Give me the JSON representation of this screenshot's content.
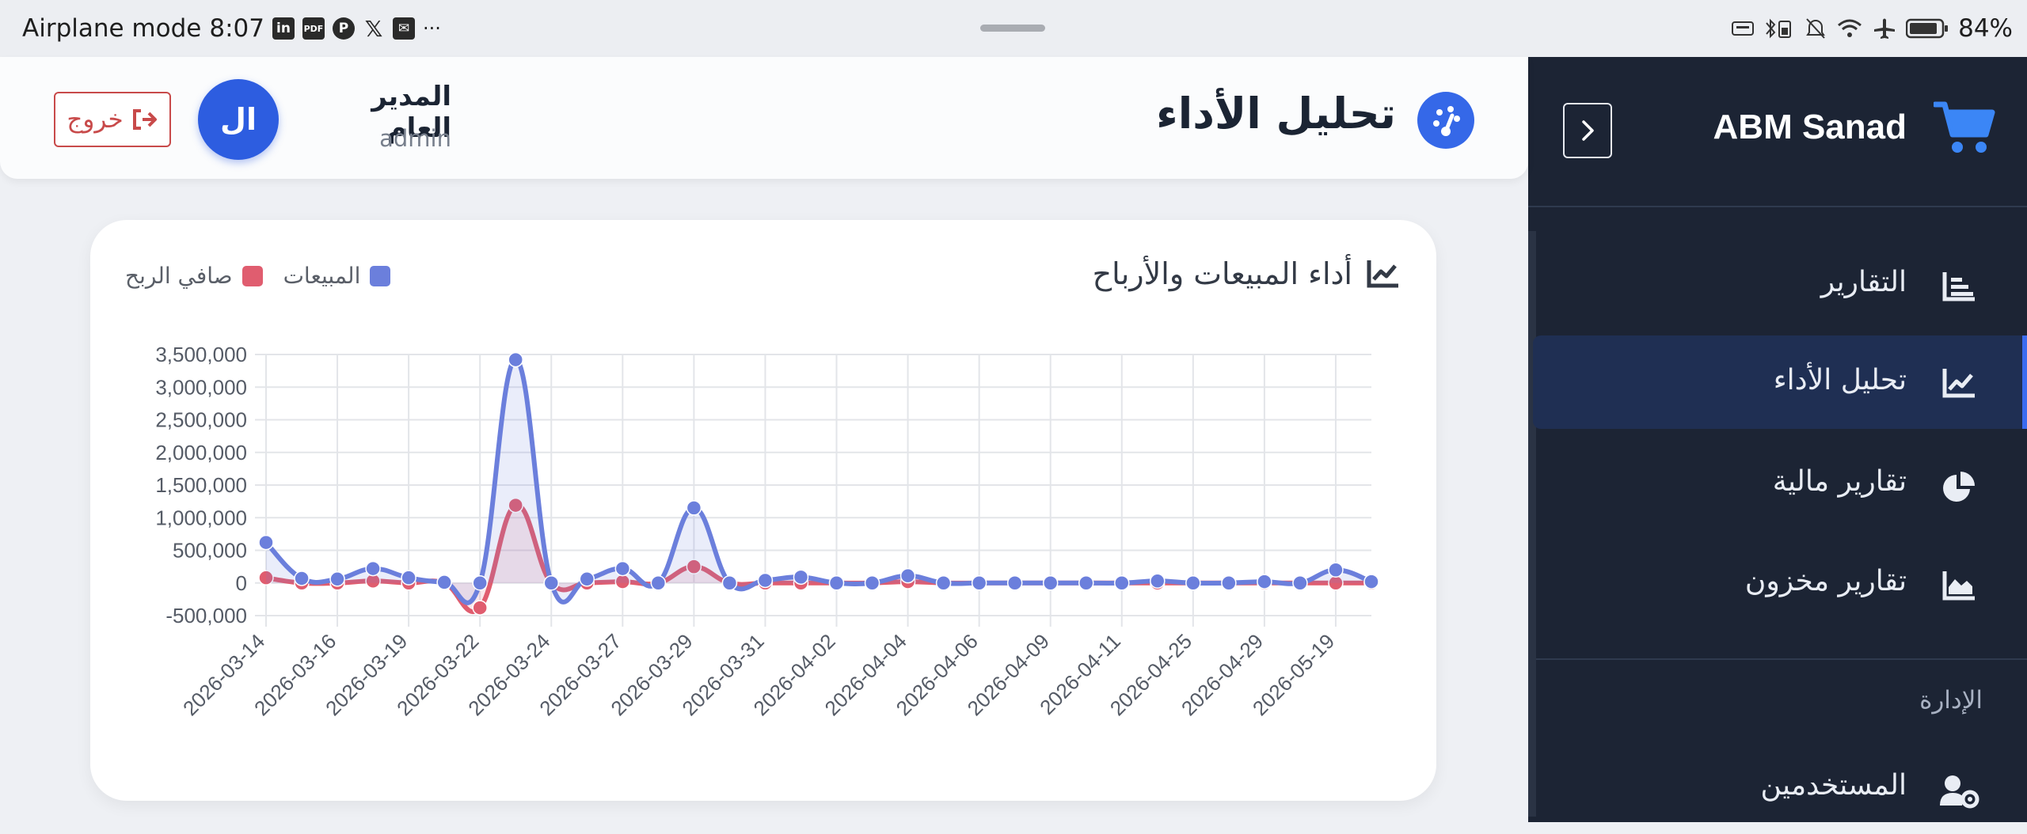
{
  "status_bar": {
    "mode_text": "Airplane mode",
    "time": "8:07",
    "app_icons": [
      "linkedin-icon",
      "pdf-icon",
      "pinterest-icon",
      "x-icon",
      "mail-icon"
    ],
    "more": "···",
    "battery": "84%"
  },
  "sidebar": {
    "brand": "ABM Sanad",
    "items": [
      {
        "label": "التقارير",
        "icon": "report-icon",
        "active": false
      },
      {
        "label": "تحليل الأداء",
        "icon": "line-chart-icon",
        "active": true
      },
      {
        "label": "تقارير مالية",
        "icon": "pie-chart-icon",
        "active": false
      },
      {
        "label": "تقارير مخزون",
        "icon": "area-chart-icon",
        "active": false
      }
    ],
    "section_label": "الإدارة",
    "section_items": [
      {
        "label": "المستخدمين",
        "icon": "users-gear-icon"
      }
    ]
  },
  "header": {
    "title": "تحليل الأداء",
    "user_name": "المدير العام",
    "user_role": "admin",
    "avatar_text": "ال",
    "logout_label": "خروج"
  },
  "colors": {
    "accent": "#3568e8",
    "sidebar_bg": "#1c2434",
    "sales": "#6b7fdc",
    "profit": "#e05d6f",
    "logout": "#c84a4a"
  },
  "chart_data": {
    "type": "line",
    "title": "أداء المبيعات والأرباح",
    "legend": [
      "المبيعات",
      "صافي الربح"
    ],
    "legend_position": "top-left",
    "grid": true,
    "ylim": [
      -500000,
      3500000
    ],
    "y_ticks": [
      "-500,000",
      "0",
      "500,000",
      "1,000,000",
      "1,500,000",
      "2,000,000",
      "2,500,000",
      "3,000,000",
      "3,500,000"
    ],
    "x_tick_labels": [
      "2026-03-14",
      "2026-03-16",
      "2026-03-19",
      "2026-03-22",
      "2026-03-24",
      "2026-03-27",
      "2026-03-29",
      "2026-03-31",
      "2026-04-02",
      "2026-04-04",
      "2026-04-06",
      "2026-04-09",
      "2026-04-11",
      "2026-04-25",
      "2026-04-29",
      "2026-05-19"
    ],
    "n_points": 32,
    "series": [
      {
        "name": "المبيعات",
        "color": "#6b7fdc",
        "values": [
          620000,
          70000,
          60000,
          220000,
          80000,
          10000,
          0,
          3420000,
          0,
          60000,
          220000,
          0,
          1150000,
          0,
          40000,
          90000,
          0,
          0,
          110000,
          0,
          0,
          0,
          0,
          0,
          0,
          30000,
          0,
          0,
          20000,
          0,
          200000,
          20000
        ]
      },
      {
        "name": "صافي الربح",
        "color": "#e05d6f",
        "values": [
          80000,
          0,
          0,
          30000,
          0,
          0,
          -380000,
          1190000,
          0,
          0,
          20000,
          0,
          250000,
          0,
          0,
          0,
          0,
          0,
          20000,
          0,
          0,
          0,
          0,
          0,
          0,
          0,
          0,
          0,
          0,
          0,
          0,
          0
        ]
      }
    ]
  }
}
